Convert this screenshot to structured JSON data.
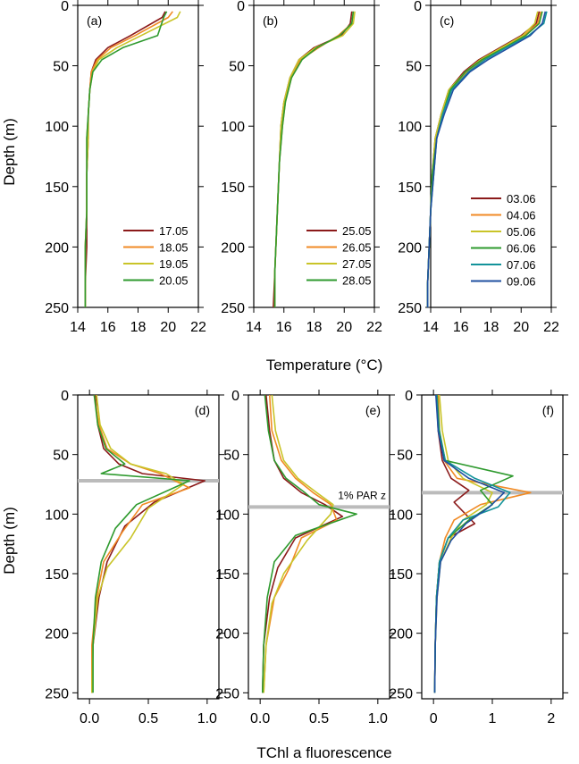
{
  "figure": {
    "top_xlabel": "Temperature (°C)",
    "bottom_xlabel": "TChl a fluorescence",
    "ylabel": "Depth (m)"
  },
  "colors": {
    "03.06": "#8B1A1A",
    "04.06": "#F08A24",
    "05.06": "#C9C428",
    "06.06": "#2E9A2E",
    "07.06": "#13939A",
    "09.06": "#1F4FA0",
    "17.05": "#8B1A1A",
    "18.05": "#F08A24",
    "19.05": "#C9C428",
    "20.05": "#2E9A2E",
    "25.05": "#8B1A1A",
    "26.05": "#F08A24",
    "27.05": "#C9C428",
    "28.05": "#2E9A2E",
    "par_line": "#BBBBBB"
  },
  "chart_data": [
    {
      "id": "a",
      "label": "(a)",
      "type": "line",
      "xlim": [
        14,
        22
      ],
      "ylim": [
        250,
        0
      ],
      "xticks": [
        14,
        16,
        18,
        20,
        22
      ],
      "yticks": [
        0,
        50,
        100,
        150,
        200,
        250
      ],
      "legend": "lower-right",
      "series": [
        {
          "name": "17.05",
          "x": [
            19.8,
            19.6,
            17.5,
            16,
            15.2,
            14.9,
            14.8,
            14.7,
            14.7,
            14.6,
            14.6,
            14.6,
            14.5,
            14.5
          ],
          "y": [
            5,
            10,
            25,
            35,
            45,
            55,
            70,
            90,
            110,
            140,
            170,
            200,
            230,
            250
          ]
        },
        {
          "name": "18.05",
          "x": [
            20.3,
            20.0,
            17.8,
            16.2,
            15.3,
            14.9,
            14.8,
            14.7,
            14.6,
            14.6,
            14.6,
            14.5,
            14.5,
            14.5
          ],
          "y": [
            5,
            10,
            25,
            35,
            45,
            55,
            70,
            90,
            110,
            140,
            170,
            200,
            230,
            250
          ]
        },
        {
          "name": "19.05",
          "x": [
            20.8,
            20.6,
            18.2,
            16.6,
            15.4,
            15.0,
            14.8,
            14.7,
            14.7,
            14.6,
            14.6,
            14.5,
            14.5,
            14.5
          ],
          "y": [
            5,
            10,
            25,
            35,
            45,
            55,
            70,
            90,
            110,
            140,
            170,
            200,
            230,
            250
          ]
        },
        {
          "name": "20.05",
          "x": [
            19.9,
            19.7,
            19.3,
            17.0,
            15.6,
            15.0,
            14.8,
            14.7,
            14.6,
            14.6,
            14.6,
            14.5,
            14.5,
            14.5
          ],
          "y": [
            5,
            10,
            25,
            35,
            45,
            55,
            70,
            90,
            110,
            140,
            170,
            200,
            230,
            250
          ]
        }
      ]
    },
    {
      "id": "b",
      "label": "(b)",
      "type": "line",
      "xlim": [
        14,
        22
      ],
      "ylim": [
        250,
        0
      ],
      "xticks": [
        14,
        16,
        18,
        20,
        22
      ],
      "yticks": [
        0,
        50,
        100,
        150,
        200,
        250
      ],
      "legend": "lower-right",
      "series": [
        {
          "name": "25.05",
          "x": [
            20.5,
            20.4,
            19.8,
            18.0,
            17.0,
            16.4,
            16.0,
            15.8,
            15.7,
            15.6,
            15.5,
            15.4,
            15.3
          ],
          "y": [
            5,
            15,
            25,
            35,
            45,
            60,
            80,
            100,
            130,
            160,
            190,
            220,
            250
          ]
        },
        {
          "name": "26.05",
          "x": [
            20.6,
            20.5,
            19.6,
            18.3,
            17.1,
            16.5,
            16.1,
            15.9,
            15.7,
            15.6,
            15.5,
            15.4,
            15.4
          ],
          "y": [
            5,
            15,
            25,
            35,
            45,
            60,
            80,
            100,
            130,
            160,
            190,
            220,
            250
          ]
        },
        {
          "name": "27.05",
          "x": [
            20.7,
            20.6,
            19.9,
            18.1,
            17.0,
            16.4,
            16.0,
            15.8,
            15.7,
            15.6,
            15.5,
            15.4,
            15.4
          ],
          "y": [
            5,
            15,
            25,
            35,
            45,
            60,
            80,
            100,
            130,
            160,
            190,
            220,
            250
          ]
        },
        {
          "name": "28.05",
          "x": [
            20.6,
            20.5,
            19.7,
            18.2,
            17.2,
            16.5,
            16.1,
            15.9,
            15.7,
            15.6,
            15.5,
            15.4,
            15.4
          ],
          "y": [
            5,
            15,
            25,
            35,
            45,
            60,
            80,
            100,
            130,
            160,
            190,
            220,
            250
          ]
        }
      ]
    },
    {
      "id": "c",
      "label": "(c)",
      "type": "line",
      "xlim": [
        14,
        22
      ],
      "ylim": [
        250,
        0
      ],
      "xticks": [
        14,
        16,
        18,
        20,
        22
      ],
      "yticks": [
        0,
        50,
        100,
        150,
        200,
        250
      ],
      "legend": "lower-right",
      "series": [
        {
          "name": "03.06",
          "x": [
            21.2,
            21.0,
            20.0,
            18.6,
            17.2,
            16.2,
            15.2,
            14.7,
            14.3,
            14.1,
            14.0,
            13.9,
            13.8,
            13.8
          ],
          "y": [
            5,
            15,
            25,
            35,
            45,
            55,
            70,
            90,
            110,
            140,
            170,
            200,
            230,
            250
          ]
        },
        {
          "name": "04.06",
          "x": [
            21.3,
            21.1,
            20.2,
            18.8,
            17.5,
            16.4,
            15.3,
            14.8,
            14.4,
            14.1,
            14.0,
            13.9,
            13.8,
            13.8
          ],
          "y": [
            5,
            15,
            25,
            35,
            45,
            55,
            70,
            90,
            110,
            140,
            170,
            200,
            230,
            250
          ]
        },
        {
          "name": "05.06",
          "x": [
            21.1,
            20.9,
            20.1,
            18.7,
            17.3,
            16.3,
            15.2,
            14.7,
            14.3,
            14.1,
            14.0,
            13.9,
            13.8,
            13.8
          ],
          "y": [
            5,
            15,
            25,
            35,
            45,
            55,
            70,
            90,
            110,
            140,
            170,
            200,
            230,
            250
          ]
        },
        {
          "name": "06.06",
          "x": [
            21.4,
            21.2,
            20.3,
            18.9,
            17.4,
            16.3,
            15.3,
            14.8,
            14.4,
            14.1,
            14.0,
            13.9,
            13.8,
            13.8
          ],
          "y": [
            5,
            15,
            25,
            35,
            45,
            55,
            70,
            90,
            110,
            140,
            170,
            200,
            230,
            250
          ]
        },
        {
          "name": "07.06",
          "x": [
            21.7,
            21.5,
            20.5,
            19.0,
            17.6,
            16.5,
            15.4,
            14.8,
            14.4,
            14.2,
            14.0,
            13.9,
            13.8,
            13.8
          ],
          "y": [
            5,
            15,
            25,
            35,
            45,
            55,
            70,
            90,
            110,
            140,
            170,
            200,
            230,
            250
          ]
        },
        {
          "name": "09.06",
          "x": [
            21.6,
            21.4,
            20.6,
            19.2,
            17.8,
            16.6,
            15.5,
            14.9,
            14.4,
            14.2,
            14.0,
            13.9,
            13.8,
            13.8
          ],
          "y": [
            5,
            15,
            25,
            35,
            45,
            55,
            70,
            90,
            110,
            140,
            170,
            200,
            230,
            250
          ]
        }
      ]
    },
    {
      "id": "d",
      "label": "(d)",
      "type": "line",
      "xlim": [
        -0.1,
        1.1
      ],
      "ylim": [
        255,
        0
      ],
      "xticks": [
        0.0,
        0.5,
        1.0
      ],
      "xticklabels": [
        "0.0",
        "0.5",
        "1.0"
      ],
      "yticks": [
        0,
        50,
        100,
        150,
        200,
        250
      ],
      "hline": 72,
      "series": [
        {
          "name": "17.05",
          "x": [
            0.05,
            0.07,
            0.12,
            0.25,
            0.45,
            0.98,
            0.55,
            0.3,
            0.15,
            0.08,
            0.03,
            0.02
          ],
          "y": [
            0,
            25,
            45,
            58,
            66,
            72,
            90,
            110,
            140,
            170,
            210,
            250
          ]
        },
        {
          "name": "18.05",
          "x": [
            0.04,
            0.08,
            0.15,
            0.35,
            0.6,
            0.85,
            0.45,
            0.28,
            0.12,
            0.06,
            0.02,
            0.02
          ],
          "y": [
            0,
            25,
            45,
            58,
            66,
            78,
            92,
            115,
            140,
            170,
            210,
            250
          ]
        },
        {
          "name": "19.05",
          "x": [
            0.06,
            0.09,
            0.18,
            0.35,
            0.65,
            0.8,
            0.5,
            0.35,
            0.15,
            0.07,
            0.03,
            0.02
          ],
          "y": [
            0,
            25,
            45,
            58,
            66,
            75,
            95,
            120,
            145,
            170,
            210,
            250
          ]
        },
        {
          "name": "20.05",
          "x": [
            0.04,
            0.07,
            0.14,
            0.3,
            0.1,
            0.85,
            0.4,
            0.22,
            0.1,
            0.05,
            0.03,
            0.03
          ],
          "y": [
            0,
            25,
            45,
            58,
            66,
            72,
            92,
            112,
            140,
            170,
            210,
            250
          ]
        }
      ]
    },
    {
      "id": "e",
      "label": "(e)",
      "type": "line",
      "xlim": [
        -0.1,
        1.1
      ],
      "ylim": [
        255,
        0
      ],
      "xticks": [
        0.0,
        0.5,
        1.0
      ],
      "xticklabels": [
        "0.0",
        "0.5",
        "1.0"
      ],
      "yticks": [
        0,
        50,
        100,
        150,
        200,
        250
      ],
      "hline": 94,
      "hline_label": "1% PAR z",
      "series": [
        {
          "name": "25.05",
          "x": [
            0.05,
            0.08,
            0.12,
            0.2,
            0.35,
            0.55,
            0.7,
            0.3,
            0.15,
            0.08,
            0.03,
            0.02
          ],
          "y": [
            0,
            30,
            55,
            70,
            82,
            92,
            102,
            120,
            145,
            170,
            210,
            250
          ]
        },
        {
          "name": "26.05",
          "x": [
            0.08,
            0.1,
            0.18,
            0.3,
            0.45,
            0.6,
            0.65,
            0.35,
            0.25,
            0.12,
            0.05,
            0.03
          ],
          "y": [
            0,
            30,
            55,
            70,
            82,
            92,
            105,
            120,
            145,
            170,
            210,
            250
          ]
        },
        {
          "name": "27.05",
          "x": [
            0.1,
            0.13,
            0.2,
            0.32,
            0.48,
            0.62,
            0.6,
            0.4,
            0.2,
            0.1,
            0.05,
            0.03
          ],
          "y": [
            0,
            30,
            55,
            70,
            82,
            92,
            100,
            122,
            150,
            175,
            210,
            250
          ]
        },
        {
          "name": "28.05",
          "x": [
            0.04,
            0.07,
            0.12,
            0.22,
            0.38,
            0.5,
            0.82,
            0.3,
            0.12,
            0.06,
            0.03,
            0.02
          ],
          "y": [
            0,
            30,
            55,
            70,
            82,
            92,
            100,
            118,
            140,
            170,
            210,
            250
          ]
        }
      ]
    },
    {
      "id": "f",
      "label": "(f)",
      "type": "line",
      "xlim": [
        -0.2,
        2.2
      ],
      "ylim": [
        255,
        0
      ],
      "xticks": [
        0,
        1,
        2
      ],
      "xticklabels": [
        "0",
        "1",
        "2"
      ],
      "yticks": [
        0,
        50,
        100,
        150,
        200,
        250
      ],
      "hline": 82,
      "series": [
        {
          "name": "03.06",
          "x": [
            0.05,
            0.08,
            0.15,
            0.3,
            0.6,
            0.35,
            0.7,
            0.25,
            0.1,
            0.05,
            0.03,
            0.02
          ],
          "y": [
            0,
            30,
            55,
            70,
            80,
            90,
            108,
            120,
            140,
            170,
            210,
            250
          ]
        },
        {
          "name": "04.06",
          "x": [
            0.08,
            0.1,
            0.18,
            0.4,
            1.65,
            0.8,
            0.35,
            0.2,
            0.1,
            0.05,
            0.03,
            0.02
          ],
          "y": [
            0,
            30,
            55,
            70,
            82,
            92,
            105,
            120,
            140,
            170,
            210,
            250
          ]
        },
        {
          "name": "05.06",
          "x": [
            0.1,
            0.15,
            0.25,
            0.5,
            1.0,
            0.9,
            0.5,
            0.3,
            0.12,
            0.06,
            0.03,
            0.02
          ],
          "y": [
            0,
            30,
            55,
            70,
            82,
            92,
            105,
            120,
            140,
            170,
            210,
            250
          ]
        },
        {
          "name": "06.06",
          "x": [
            0.06,
            0.1,
            0.2,
            1.35,
            0.8,
            1.0,
            0.6,
            0.25,
            0.1,
            0.05,
            0.03,
            0.02
          ],
          "y": [
            0,
            30,
            55,
            68,
            80,
            92,
            105,
            120,
            140,
            170,
            210,
            250
          ]
        },
        {
          "name": "07.06",
          "x": [
            0.05,
            0.09,
            0.2,
            0.7,
            1.3,
            1.1,
            0.5,
            0.25,
            0.1,
            0.05,
            0.03,
            0.02
          ],
          "y": [
            0,
            30,
            55,
            70,
            82,
            94,
            105,
            120,
            140,
            170,
            210,
            250
          ]
        },
        {
          "name": "09.06",
          "x": [
            0.04,
            0.08,
            0.18,
            0.6,
            1.2,
            0.95,
            0.55,
            0.3,
            0.12,
            0.06,
            0.03,
            0.02
          ],
          "y": [
            0,
            30,
            55,
            70,
            82,
            94,
            108,
            122,
            140,
            170,
            210,
            250
          ]
        }
      ]
    }
  ]
}
